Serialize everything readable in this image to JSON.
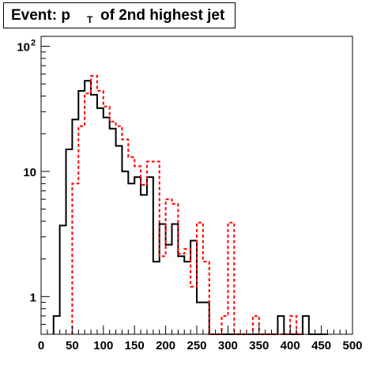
{
  "title": {
    "prefix": "Event: p",
    "subscript": "T",
    "suffix": "of 2nd highest jet"
  },
  "chart_data": {
    "type": "histogram",
    "title": "Event: p_T of 2nd highest jet",
    "xlabel": "",
    "ylabel": "",
    "xlim": [
      0,
      500
    ],
    "ylim": [
      0.5,
      120
    ],
    "y_scale": "log",
    "bin_width": 10,
    "x_ticks": [
      "0",
      "50",
      "100",
      "150",
      "200",
      "250",
      "300",
      "350",
      "400",
      "450",
      "500"
    ],
    "y_ticks": [
      {
        "value": 1,
        "label": "1"
      },
      {
        "value": 10,
        "label": "10"
      },
      {
        "value": 100,
        "label": "10",
        "exponent": "2"
      }
    ],
    "series": [
      {
        "style": "solid",
        "color": "#000000",
        "bin_low_edges": [
          20,
          30,
          40,
          50,
          60,
          70,
          80,
          90,
          100,
          110,
          120,
          130,
          140,
          150,
          160,
          170,
          180,
          190,
          200,
          210,
          220,
          230,
          240,
          250,
          260,
          270,
          280,
          290,
          300,
          310,
          320,
          330,
          340,
          350,
          360,
          370,
          380,
          390,
          400,
          410,
          420,
          430,
          440,
          450
        ],
        "values": [
          0.7,
          3.7,
          15,
          26,
          44,
          53,
          41,
          32,
          27,
          22,
          16,
          10,
          8,
          9,
          6.5,
          9,
          1.9,
          3.8,
          2.6,
          3.8,
          2.1,
          1.9,
          2.8,
          0.9,
          0.9,
          0.5,
          0.5,
          0.5,
          0.5,
          0.5,
          0.5,
          0.5,
          0.5,
          0.5,
          0.5,
          0.5,
          0.7,
          0.5,
          0.5,
          0.5,
          0.7,
          0.5,
          0.5,
          0.5
        ]
      },
      {
        "style": "dashed",
        "color": "#ff0000",
        "bin_low_edges": [
          50,
          60,
          70,
          80,
          90,
          100,
          110,
          120,
          130,
          140,
          150,
          160,
          170,
          180,
          190,
          200,
          210,
          220,
          230,
          240,
          250,
          260,
          270,
          280,
          290,
          300,
          310,
          320,
          330,
          340,
          350,
          360,
          370,
          380,
          390,
          400,
          410
        ],
        "values": [
          8,
          23,
          42,
          58,
          44,
          33,
          25,
          23,
          18,
          13,
          11,
          7.8,
          12,
          12,
          2.1,
          6,
          5.5,
          2.2,
          2.4,
          1.2,
          3.9,
          1.9,
          0.5,
          0.5,
          0.7,
          3.9,
          0.5,
          0.5,
          0.5,
          0.7,
          0.5,
          0.5,
          0.5,
          0.5,
          0.5,
          0.7,
          0.5
        ]
      }
    ]
  }
}
